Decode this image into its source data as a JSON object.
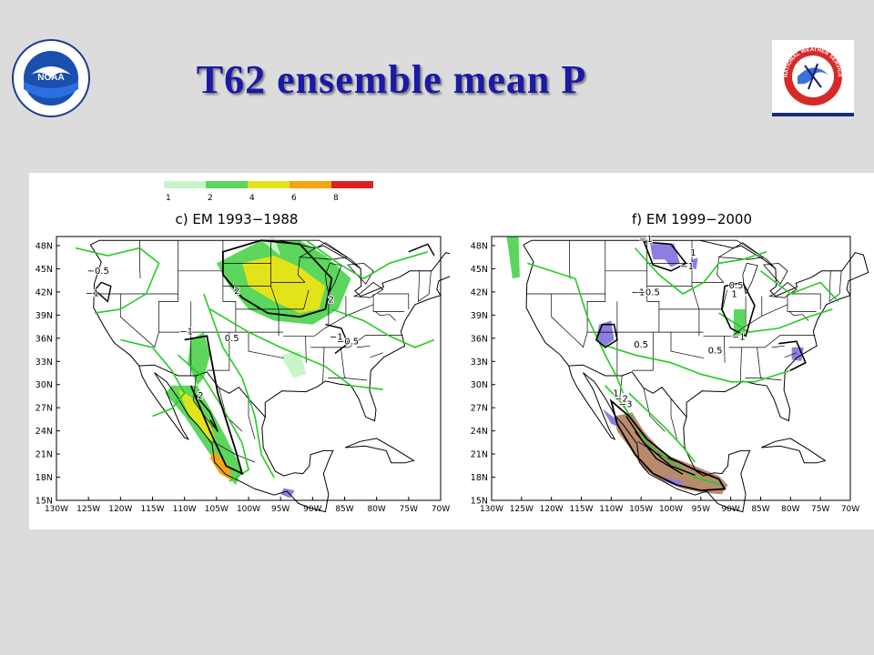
{
  "title": "T62 ensemble mean P",
  "logos": {
    "noaa": {
      "text": "NOAA"
    },
    "nws": {
      "text": "NATIONAL WEATHER SERVICE"
    }
  },
  "colorbar": {
    "levels": [
      "1",
      "2",
      "4",
      "6",
      "8"
    ],
    "colors": [
      "#c8f5c8",
      "#5cd65c",
      "#e3e31a",
      "#f5a511",
      "#e01f1f"
    ]
  },
  "panels": [
    {
      "title": "c) EM 1993−1988"
    },
    {
      "title": "f) EM 1999−2000"
    }
  ],
  "y_ticks": [
    "48N",
    "45N",
    "42N",
    "39N",
    "36N",
    "33N",
    "30N",
    "27N",
    "24N",
    "21N",
    "18N",
    "15N"
  ],
  "x_ticks": [
    "130W",
    "125W",
    "120W",
    "115W",
    "110W",
    "105W",
    "100W",
    "95W",
    "90W",
    "85W",
    "80W",
    "75W",
    "70W"
  ],
  "left_contour_labels": [
    {
      "text": "−0.5",
      "lon": -123.5,
      "lat": 44.6
    },
    {
      "text": "−1",
      "lon": -124.4,
      "lat": 41.7
    },
    {
      "text": "2",
      "lon": -101.8,
      "lat": 42.0
    },
    {
      "text": "2",
      "lon": -87.1,
      "lat": 40.9
    },
    {
      "text": "−1",
      "lon": -109.7,
      "lat": 36.7
    },
    {
      "text": "0.5",
      "lon": -102.6,
      "lat": 35.8
    },
    {
      "text": "−1",
      "lon": -86.3,
      "lat": 36.0
    },
    {
      "text": "−0.5",
      "lon": -84.5,
      "lat": 35.4
    },
    {
      "text": "2",
      "lon": -107.5,
      "lat": 28.3
    }
  ],
  "right_contour_labels": [
    {
      "text": "−1",
      "lon": -104.2,
      "lat": 48.8
    },
    {
      "text": "1",
      "lon": -96.3,
      "lat": 47.0
    },
    {
      "text": "−1",
      "lon": -97.3,
      "lat": 45.2
    },
    {
      "text": "−1",
      "lon": -105.5,
      "lat": 41.8
    },
    {
      "text": "−0.5",
      "lon": -103.7,
      "lat": 41.8
    },
    {
      "text": "0.5",
      "lon": -89.1,
      "lat": 42.7
    },
    {
      "text": "1",
      "lon": -89.4,
      "lat": 41.6
    },
    {
      "text": "−1",
      "lon": -88.7,
      "lat": 36.0
    },
    {
      "text": "0.5",
      "lon": -105.0,
      "lat": 35.0
    },
    {
      "text": "0.5",
      "lon": -92.6,
      "lat": 34.2
    },
    {
      "text": "1",
      "lon": -109.2,
      "lat": 28.6
    },
    {
      "text": "−2",
      "lon": -108.3,
      "lat": 27.9
    },
    {
      "text": "−3",
      "lon": -107.6,
      "lat": 27.2
    }
  ]
}
